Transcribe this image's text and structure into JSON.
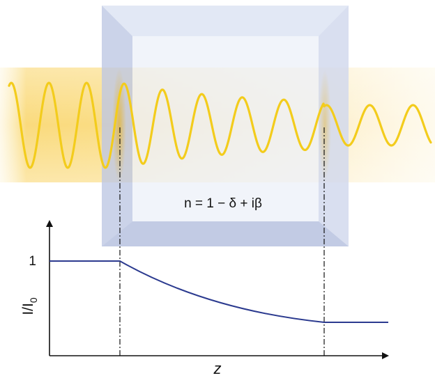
{
  "diagram": {
    "formula": "n = 1 − δ + iβ",
    "graph": {
      "y_axis_label": "I/I",
      "y_axis_label_sub": "0",
      "x_axis_label": "z",
      "y_tick_label": "1"
    },
    "colors": {
      "wave": "#f3cc1c",
      "beam": "#f9d466",
      "slab": "#c9d2ea",
      "curve": "#2b3a8f",
      "axis": "#111111"
    }
  }
}
